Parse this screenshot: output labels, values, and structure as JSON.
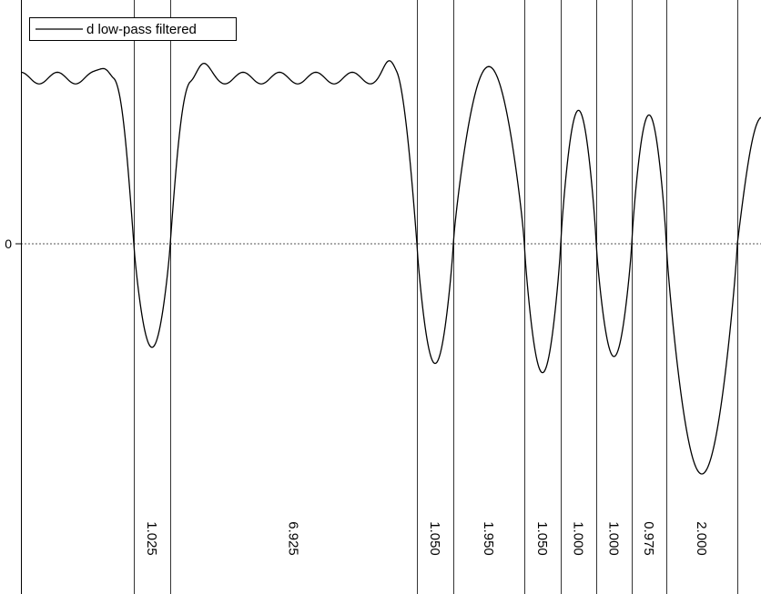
{
  "chart_data": {
    "type": "line",
    "title": "",
    "xlabel": "",
    "ylabel": "",
    "legend": {
      "placement": "top-left",
      "entries": [
        "d low-pass filtered"
      ]
    },
    "y_ticks": [
      "0"
    ],
    "zero_line": "dotted",
    "series": [
      {
        "name": "d low-pass filtered",
        "description": "sequence of positive lobes with ringing and negative dips",
        "segments": [
          {
            "sign": "+",
            "peak": 0.72,
            "ripple": true
          },
          {
            "sign": "-",
            "peak": -0.45
          },
          {
            "sign": "+",
            "peak": 0.72,
            "ripple": true
          },
          {
            "sign": "-",
            "peak": -0.52
          },
          {
            "sign": "+",
            "peak": 0.77
          },
          {
            "sign": "-",
            "peak": -0.56
          },
          {
            "sign": "+",
            "peak": 0.58
          },
          {
            "sign": "-",
            "peak": -0.49
          },
          {
            "sign": "+",
            "peak": 0.56
          },
          {
            "sign": "-",
            "peak": -1.0
          },
          {
            "sign": "+",
            "peak": 0.55
          }
        ]
      }
    ],
    "interval_labels": [
      "1.025",
      "6.925",
      "1.050",
      "1.950",
      "1.050",
      "1.000",
      "1.000",
      "0.975",
      "2.000"
    ]
  }
}
